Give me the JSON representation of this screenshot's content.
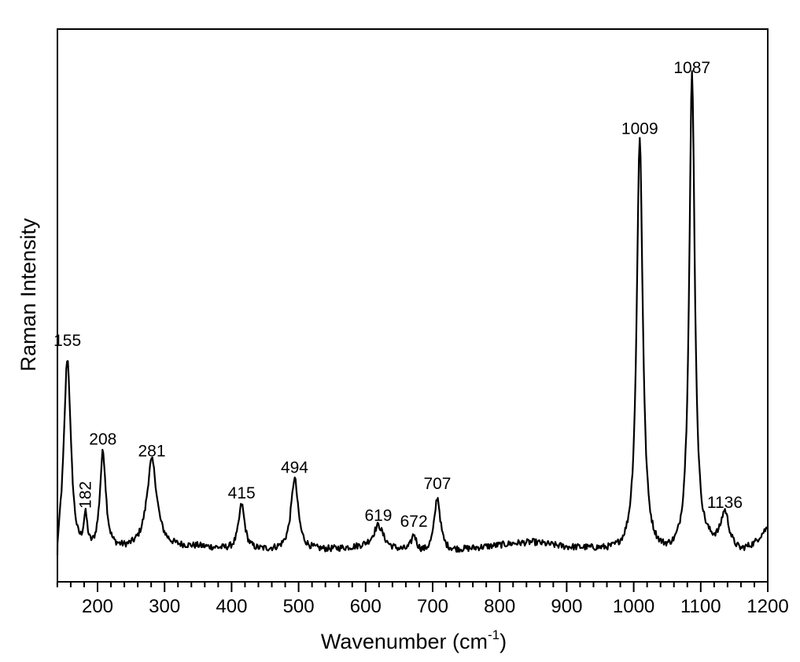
{
  "chart_data": {
    "type": "line",
    "title": "",
    "xlabel": "Wavenumber (cm-1)",
    "xlabel_main": "Wavenumber (cm",
    "xlabel_sup": "-1",
    "xlabel_close": ")",
    "ylabel": "Raman Intensity",
    "xlim": [
      139,
      1200
    ],
    "ylim": [
      -6,
      118
    ],
    "y_ticks_labeled": false,
    "grid": false,
    "legend": null,
    "x_ticks": [
      200,
      300,
      400,
      500,
      600,
      700,
      800,
      900,
      1000,
      1100,
      1200
    ],
    "x_tick_labels": [
      "200",
      "300",
      "400",
      "500",
      "600",
      "700",
      "800",
      "900",
      "1000",
      "1100",
      "1200"
    ],
    "x_minor_step": 20,
    "color": "#000000",
    "series": [
      {
        "name": "Raman spectrum",
        "peaks": [
          {
            "x": 155,
            "y": 42.0,
            "width": 7,
            "label": "155",
            "label_rotated": false
          },
          {
            "x": 182,
            "y": 7.2,
            "width": 4,
            "label": "182",
            "label_rotated": true
          },
          {
            "x": 208,
            "y": 21.0,
            "width": 6,
            "label": "208",
            "label_rotated": false
          },
          {
            "x": 281,
            "y": 18.5,
            "width": 10,
            "label": "281",
            "label_rotated": false
          },
          {
            "x": 415,
            "y": 9.5,
            "width": 6,
            "label": "415",
            "label_rotated": false
          },
          {
            "x": 494,
            "y": 15.0,
            "width": 7,
            "label": "494",
            "label_rotated": false
          },
          {
            "x": 619,
            "y": 4.8,
            "width": 10,
            "label": "619",
            "label_rotated": false
          },
          {
            "x": 672,
            "y": 3.5,
            "width": 5,
            "label": "672",
            "label_rotated": false
          },
          {
            "x": 707,
            "y": 11.5,
            "width": 6,
            "label": "707",
            "label_rotated": false
          },
          {
            "x": 1009,
            "y": 87.0,
            "width": 6,
            "label": "1009",
            "label_rotated": false
          },
          {
            "x": 1087,
            "y": 100.0,
            "width": 5.5,
            "label": "1087",
            "label_rotated": false
          },
          {
            "x": 1136,
            "y": 7.5,
            "width": 8,
            "label": "1136",
            "label_rotated": false
          }
        ],
        "baseline_points": [
          [
            139,
            -1
          ],
          [
            170,
            -1.5
          ],
          [
            230,
            0.5
          ],
          [
            350,
            1.0
          ],
          [
            400,
            0.3
          ],
          [
            540,
            0.3
          ],
          [
            600,
            0.8
          ],
          [
            690,
            -0.5
          ],
          [
            760,
            0.5
          ],
          [
            820,
            1.5
          ],
          [
            850,
            1.8
          ],
          [
            900,
            0.8
          ],
          [
            960,
            0.6
          ],
          [
            1060,
            0.6
          ],
          [
            1110,
            2.0
          ],
          [
            1160,
            0.0
          ],
          [
            1180,
            1.5
          ],
          [
            1200,
            5.0
          ]
        ]
      }
    ],
    "annotations": [
      "155",
      "182",
      "208",
      "281",
      "415",
      "494",
      "619",
      "672",
      "707",
      "1009",
      "1087",
      "1136"
    ]
  }
}
